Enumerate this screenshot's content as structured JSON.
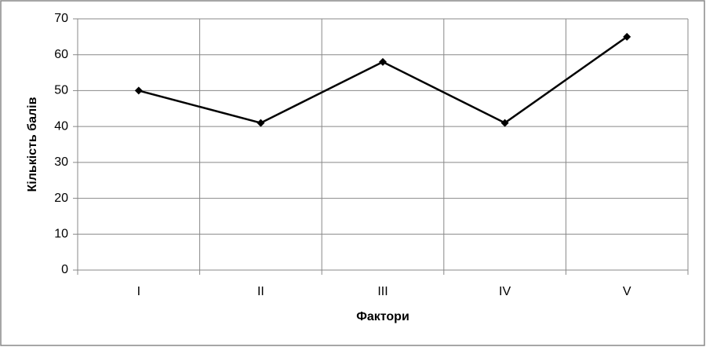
{
  "chart_data": {
    "type": "line",
    "x_label": "Фактори",
    "y_label": "Кількість балів",
    "categories": [
      "I",
      "II",
      "III",
      "IV",
      "V"
    ],
    "series": [
      {
        "color": "#000000",
        "values": [
          50,
          41,
          58,
          41,
          65
        ]
      }
    ],
    "ylim": [
      0,
      70
    ],
    "yticks": [
      0,
      10,
      20,
      30,
      40,
      50,
      60,
      70
    ],
    "grid": true
  }
}
